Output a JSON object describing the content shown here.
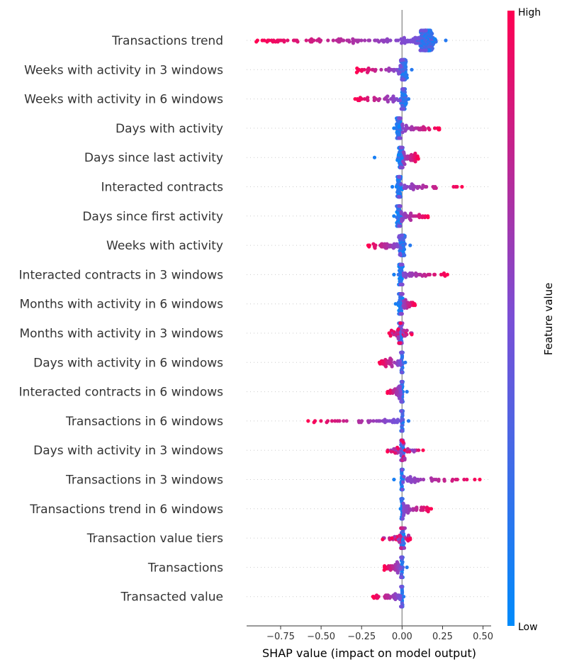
{
  "chart_data": {
    "type": "scatter",
    "subtype": "shap-beeswarm",
    "xlabel": "SHAP value (impact on model output)",
    "ylabel": "",
    "xlim": [
      -0.96,
      0.55
    ],
    "xticks": [
      -0.75,
      -0.5,
      -0.25,
      0.0,
      0.25,
      0.5
    ],
    "xtick_labels": [
      "−0.75",
      "−0.50",
      "−0.25",
      "0.00",
      "0.25",
      "0.50"
    ],
    "grid": false,
    "colorbar": {
      "label": "Feature value",
      "high_label": "High",
      "low_label": "Low",
      "high_color": "#ff0052",
      "mid_color": "#7a4fd6",
      "low_color": "#008bfb"
    },
    "features": [
      {
        "name": "Transactions trend",
        "center": 0.15,
        "core_spread": 0.1,
        "low_side": -0.9,
        "high_side": 0.27,
        "high_values": "negative"
      },
      {
        "name": "Weeks with activity in 3 windows",
        "center": 0.01,
        "core_spread": 0.04,
        "low_side": -0.28,
        "high_side": 0.06,
        "high_values": "negative"
      },
      {
        "name": "Weeks with activity in 6 windows",
        "center": 0.01,
        "core_spread": 0.03,
        "low_side": -0.29,
        "high_side": 0.04,
        "high_values": "negative"
      },
      {
        "name": "Days with activity",
        "center": -0.02,
        "core_spread": 0.03,
        "low_side": -0.05,
        "high_side": 0.23,
        "high_values": "positive"
      },
      {
        "name": "Days since last activity",
        "center": -0.01,
        "core_spread": 0.04,
        "low_side": -0.17,
        "high_side": 0.1,
        "high_values": "positive"
      },
      {
        "name": "Interacted contracts",
        "center": -0.02,
        "core_spread": 0.03,
        "low_side": -0.06,
        "high_side": 0.37,
        "high_values": "positive"
      },
      {
        "name": "Days since first activity",
        "center": -0.02,
        "core_spread": 0.03,
        "low_side": -0.05,
        "high_side": 0.16,
        "high_values": "positive"
      },
      {
        "name": "Weeks with activity",
        "center": 0.0,
        "core_spread": 0.03,
        "low_side": -0.21,
        "high_side": 0.05,
        "high_values": "negative"
      },
      {
        "name": "Interacted contracts in 3 windows",
        "center": -0.01,
        "core_spread": 0.02,
        "low_side": -0.05,
        "high_side": 0.28,
        "high_values": "positive"
      },
      {
        "name": "Months with activity in 6 windows",
        "center": -0.01,
        "core_spread": 0.02,
        "low_side": -0.04,
        "high_side": 0.08,
        "high_values": "positive"
      },
      {
        "name": "Months with activity in 3 windows",
        "center": -0.01,
        "core_spread": 0.02,
        "low_side": -0.08,
        "high_side": 0.06,
        "high_values": "mixed"
      },
      {
        "name": "Days with activity in 6 windows",
        "center": 0.0,
        "core_spread": 0.01,
        "low_side": -0.14,
        "high_side": 0.02,
        "high_values": "negative"
      },
      {
        "name": "Interacted contracts in 6 windows",
        "center": 0.0,
        "core_spread": 0.01,
        "low_side": -0.09,
        "high_side": 0.03,
        "high_values": "negative"
      },
      {
        "name": "Transactions in 6 windows",
        "center": 0.0,
        "core_spread": 0.01,
        "low_side": -0.58,
        "high_side": 0.04,
        "high_values": "negative"
      },
      {
        "name": "Days with activity in 3 windows",
        "center": 0.0,
        "core_spread": 0.02,
        "low_side": -0.09,
        "high_side": 0.13,
        "high_values": "mixed"
      },
      {
        "name": "Transactions in 3 windows",
        "center": 0.0,
        "core_spread": 0.01,
        "low_side": -0.05,
        "high_side": 0.48,
        "high_values": "positive"
      },
      {
        "name": "Transactions trend in 6 windows",
        "center": 0.0,
        "core_spread": 0.01,
        "low_side": -0.01,
        "high_side": 0.18,
        "high_values": "positive"
      },
      {
        "name": "Transaction value tiers",
        "center": 0.0,
        "core_spread": 0.02,
        "low_side": -0.12,
        "high_side": 0.05,
        "high_values": "mixed"
      },
      {
        "name": "Transactions",
        "center": 0.0,
        "core_spread": 0.01,
        "low_side": -0.11,
        "high_side": 0.03,
        "high_values": "negative"
      },
      {
        "name": "Transacted value",
        "center": 0.0,
        "core_spread": 0.005,
        "low_side": -0.18,
        "high_side": 0.01,
        "high_values": "negative"
      }
    ]
  }
}
